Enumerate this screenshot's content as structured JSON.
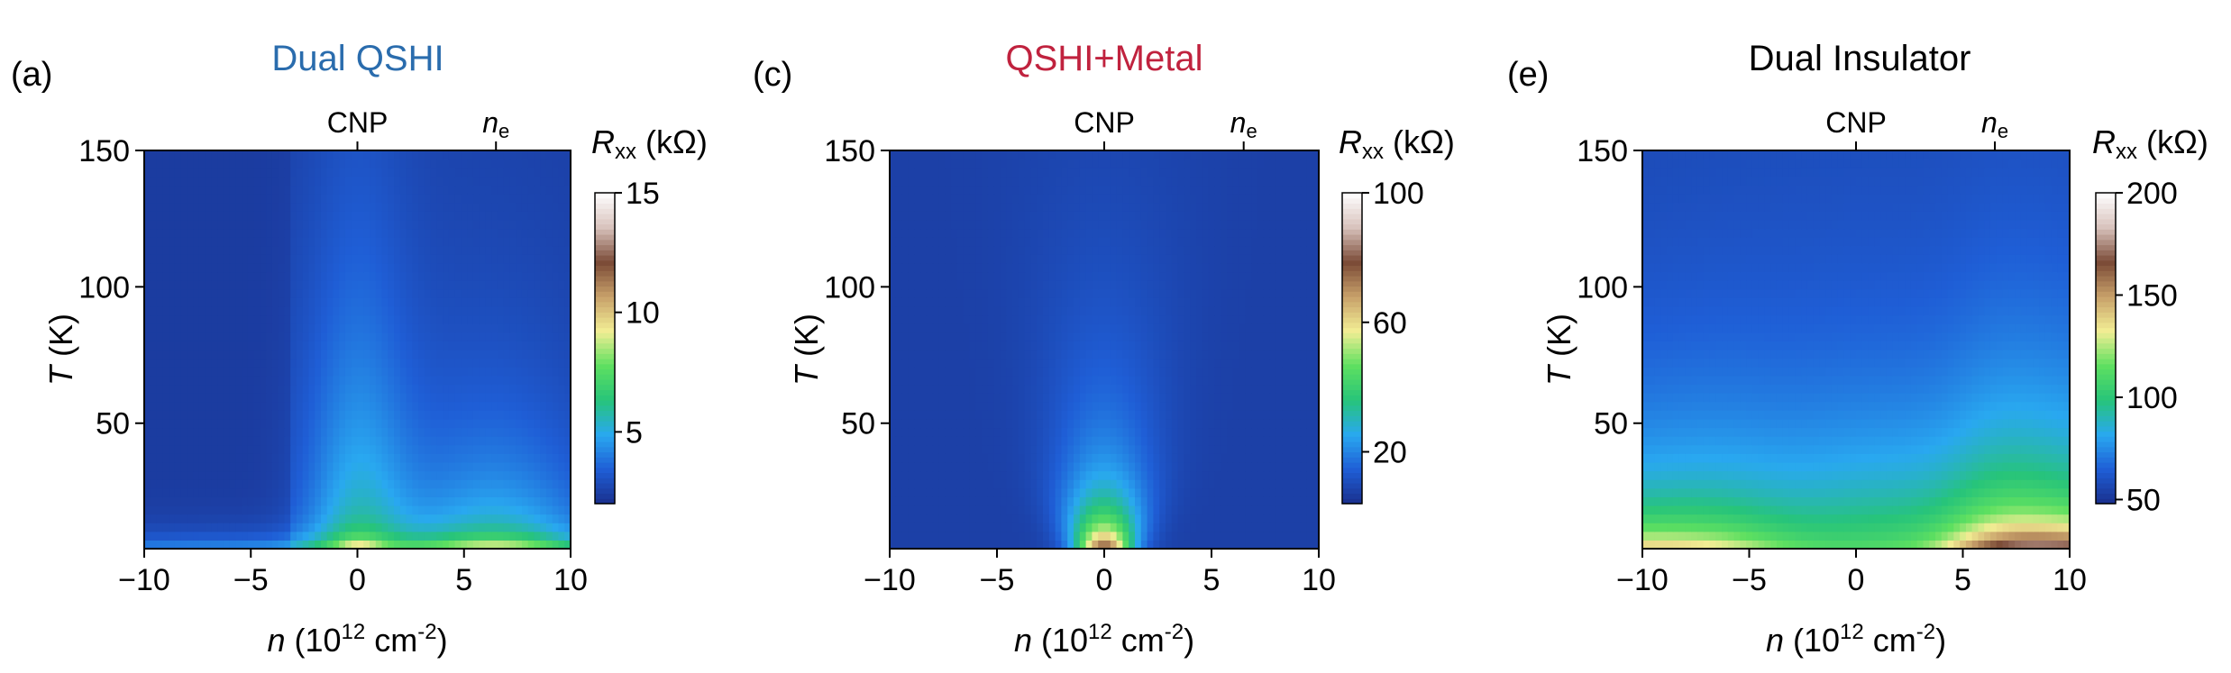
{
  "chart_data": [
    {
      "type": "heatmap",
      "panel_label": "(a)",
      "title": "Dual QSHI",
      "title_color": "#2a6cad",
      "x_var": "n",
      "x_unit": "(10",
      "x_exp": "12",
      "x_unit2": " cm",
      "x_exp2": "-2",
      "x_close": ")",
      "y_var": "T",
      "y_unit": " (K)",
      "xlim": [
        -10,
        10
      ],
      "ylim": [
        4,
        150
      ],
      "xticks": [
        {
          "v": -10,
          "label": "−10"
        },
        {
          "v": -5,
          "label": "−5"
        },
        {
          "v": 0,
          "label": "0"
        },
        {
          "v": 5,
          "label": "5"
        },
        {
          "v": 10,
          "label": "10"
        }
      ],
      "yticks": [
        {
          "v": 50,
          "label": "50"
        },
        {
          "v": 100,
          "label": "100"
        },
        {
          "v": 150,
          "label": "150"
        }
      ],
      "top_marks": [
        {
          "v": 0,
          "label": "CNP"
        },
        {
          "v": 6.5,
          "label": "n",
          "sub": "e"
        }
      ],
      "colorbar": {
        "var": "R",
        "sub": "xx",
        "unit": " (kΩ)",
        "range": [
          2,
          15
        ],
        "ticks": [
          {
            "v": 5,
            "label": "5"
          },
          {
            "v": 10,
            "label": "10"
          },
          {
            "v": 15,
            "label": "15"
          }
        ]
      },
      "colormap": [
        "#1a2f8c",
        "#1f5ed6",
        "#29a8f0",
        "#27c47a",
        "#5ee060",
        "#f2ee94",
        "#c8a06a",
        "#7a4a36",
        "#d8c2bc",
        "#ffffff"
      ],
      "model": "qshi"
    },
    {
      "type": "heatmap",
      "panel_label": "(c)",
      "title": "QSHI+Metal",
      "title_color": "#c0223e",
      "x_var": "n",
      "x_unit": "(10",
      "x_exp": "12",
      "x_unit2": " cm",
      "x_exp2": "-2",
      "x_close": ")",
      "y_var": "T",
      "y_unit": " (K)",
      "xlim": [
        -10,
        10
      ],
      "ylim": [
        4,
        150
      ],
      "xticks": [
        {
          "v": -10,
          "label": "−10"
        },
        {
          "v": -5,
          "label": "−5"
        },
        {
          "v": 0,
          "label": "0"
        },
        {
          "v": 5,
          "label": "5"
        },
        {
          "v": 10,
          "label": "10"
        }
      ],
      "yticks": [
        {
          "v": 50,
          "label": "50"
        },
        {
          "v": 100,
          "label": "100"
        },
        {
          "v": 150,
          "label": "150"
        }
      ],
      "top_marks": [
        {
          "v": 0,
          "label": "CNP"
        },
        {
          "v": 6.5,
          "label": "n",
          "sub": "e"
        }
      ],
      "colorbar": {
        "var": "R",
        "sub": "xx",
        "unit": " (kΩ)",
        "range": [
          4,
          100
        ],
        "ticks": [
          {
            "v": 20,
            "label": "20"
          },
          {
            "v": 60,
            "label": "60"
          },
          {
            "v": 100,
            "label": "100"
          }
        ]
      },
      "colormap": [
        "#1a2f8c",
        "#1f5ed6",
        "#29a8f0",
        "#27c47a",
        "#5ee060",
        "#f2ee94",
        "#c8a06a",
        "#7a4a36",
        "#d8c2bc",
        "#ffffff"
      ],
      "model": "metal"
    },
    {
      "type": "heatmap",
      "panel_label": "(e)",
      "title": "Dual Insulator",
      "title_color": "#000000",
      "x_var": "n",
      "x_unit": "(10",
      "x_exp": "12",
      "x_unit2": " cm",
      "x_exp2": "-2",
      "x_close": ")",
      "y_var": "T",
      "y_unit": " (K)",
      "xlim": [
        -10,
        10
      ],
      "ylim": [
        4,
        150
      ],
      "xticks": [
        {
          "v": -10,
          "label": "−10"
        },
        {
          "v": -5,
          "label": "−5"
        },
        {
          "v": 0,
          "label": "0"
        },
        {
          "v": 5,
          "label": "5"
        },
        {
          "v": 10,
          "label": "10"
        }
      ],
      "yticks": [
        {
          "v": 50,
          "label": "50"
        },
        {
          "v": 100,
          "label": "100"
        },
        {
          "v": 150,
          "label": "150"
        }
      ],
      "top_marks": [
        {
          "v": 0,
          "label": "CNP"
        },
        {
          "v": 6.5,
          "label": "n",
          "sub": "e"
        }
      ],
      "colorbar": {
        "var": "R",
        "sub": "xx",
        "unit": " (kΩ)",
        "range": [
          48,
          200
        ],
        "ticks": [
          {
            "v": 50,
            "label": "50"
          },
          {
            "v": 100,
            "label": "100"
          },
          {
            "v": 150,
            "label": "150"
          },
          {
            "v": 200,
            "label": "200"
          }
        ]
      },
      "colormap": [
        "#1a2f8c",
        "#1f5ed6",
        "#29a8f0",
        "#27c47a",
        "#5ee060",
        "#f2ee94",
        "#c8a06a",
        "#7a4a36",
        "#d8c2bc",
        "#ffffff"
      ],
      "model": "insulator"
    }
  ]
}
